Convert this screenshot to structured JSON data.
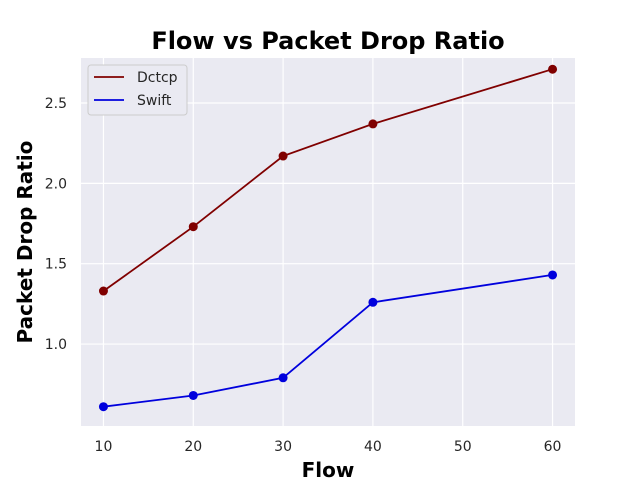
{
  "chart_data": {
    "type": "line",
    "title": "Flow vs Packet Drop Ratio",
    "xlabel": "Flow",
    "ylabel": "Packet Drop Ratio",
    "x": [
      10,
      20,
      30,
      40,
      60
    ],
    "series": [
      {
        "name": "Dctcp",
        "color": "#800000",
        "values": [
          1.33,
          1.73,
          2.17,
          2.37,
          2.71
        ]
      },
      {
        "name": "Swift",
        "color": "#0000dd",
        "values": [
          0.61,
          0.68,
          0.79,
          1.26,
          1.43
        ]
      }
    ],
    "xticks": [
      10,
      20,
      30,
      40,
      50,
      60
    ],
    "yticks": [
      1.0,
      1.5,
      2.0,
      2.5
    ],
    "xlim": [
      7.5,
      62.5
    ],
    "ylim": [
      0.49,
      2.78
    ],
    "grid": true,
    "legend": "top-left",
    "background": "#eaeaf2"
  }
}
